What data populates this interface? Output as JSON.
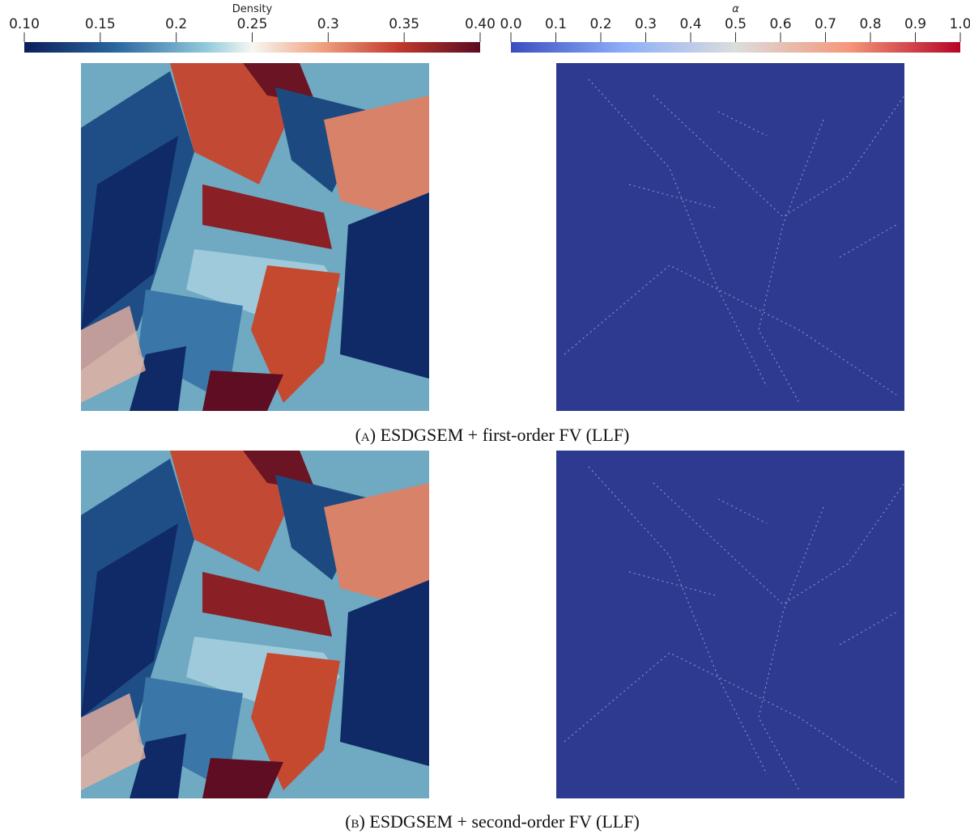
{
  "colorbars": [
    {
      "title": "Density",
      "ticks": [
        "0.10",
        "0.15",
        "0.2",
        "0.25",
        "0.3",
        "0.35",
        "0.40"
      ]
    },
    {
      "title": "α",
      "ticks": [
        "0.0",
        "0.1",
        "0.2",
        "0.3",
        "0.4",
        "0.5",
        "0.6",
        "0.7",
        "0.8",
        "0.9",
        "1.0"
      ]
    }
  ],
  "panels": [
    {
      "label": "(a)",
      "caption": "ESDGSEM + first-order FV (LLF)"
    },
    {
      "label": "(b)",
      "caption": "ESDGSEM + second-order FV (LLF)"
    }
  ]
}
